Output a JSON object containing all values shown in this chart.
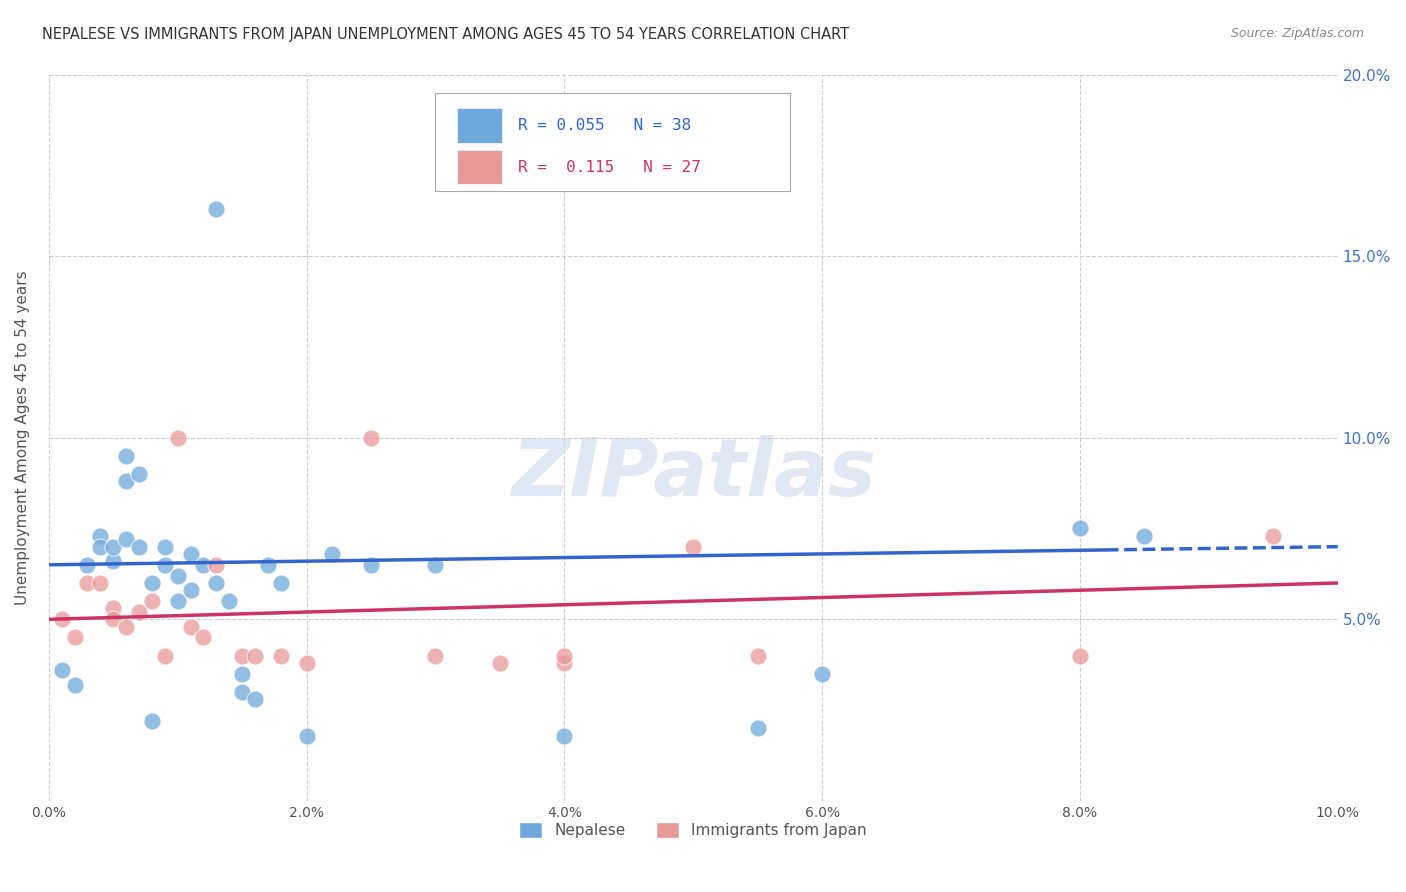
{
  "title": "NEPALESE VS IMMIGRANTS FROM JAPAN UNEMPLOYMENT AMONG AGES 45 TO 54 YEARS CORRELATION CHART",
  "source": "Source: ZipAtlas.com",
  "ylabel": "Unemployment Among Ages 45 to 54 years",
  "legend_label1": "Nepalese",
  "legend_label2": "Immigrants from Japan",
  "R1": 0.055,
  "N1": 38,
  "R2": 0.115,
  "N2": 27,
  "color1": "#6fa8dc",
  "color2": "#ea9999",
  "line_color1": "#3366cc",
  "line_color2": "#cc3366",
  "xlim": [
    0,
    0.1
  ],
  "ylim": [
    0,
    0.2
  ],
  "xticks": [
    0.0,
    0.02,
    0.04,
    0.06,
    0.08,
    0.1
  ],
  "yticks": [
    0.0,
    0.05,
    0.1,
    0.15,
    0.2
  ],
  "xtick_labels": [
    "0.0%",
    "2.0%",
    "4.0%",
    "6.0%",
    "8.0%",
    "10.0%"
  ],
  "right_ytick_labels": [
    "",
    "5.0%",
    "10.0%",
    "15.0%",
    "20.0%"
  ],
  "blue_x": [
    0.001,
    0.002,
    0.003,
    0.004,
    0.004,
    0.005,
    0.005,
    0.006,
    0.006,
    0.006,
    0.007,
    0.007,
    0.008,
    0.009,
    0.009,
    0.01,
    0.01,
    0.011,
    0.011,
    0.012,
    0.013,
    0.014,
    0.015,
    0.015,
    0.016,
    0.017,
    0.018,
    0.02,
    0.022,
    0.025,
    0.03,
    0.04,
    0.055,
    0.06,
    0.08,
    0.085,
    0.013,
    0.008
  ],
  "blue_y": [
    0.036,
    0.032,
    0.065,
    0.073,
    0.07,
    0.066,
    0.07,
    0.095,
    0.088,
    0.072,
    0.09,
    0.07,
    0.06,
    0.065,
    0.07,
    0.055,
    0.062,
    0.068,
    0.058,
    0.065,
    0.06,
    0.055,
    0.035,
    0.03,
    0.028,
    0.065,
    0.06,
    0.018,
    0.068,
    0.065,
    0.065,
    0.018,
    0.02,
    0.035,
    0.075,
    0.073,
    0.163,
    0.022
  ],
  "pink_x": [
    0.001,
    0.002,
    0.003,
    0.004,
    0.005,
    0.005,
    0.006,
    0.007,
    0.008,
    0.009,
    0.01,
    0.011,
    0.012,
    0.013,
    0.015,
    0.016,
    0.018,
    0.02,
    0.025,
    0.03,
    0.035,
    0.04,
    0.04,
    0.05,
    0.055,
    0.08,
    0.095
  ],
  "pink_y": [
    0.05,
    0.045,
    0.06,
    0.06,
    0.053,
    0.05,
    0.048,
    0.052,
    0.055,
    0.04,
    0.1,
    0.048,
    0.045,
    0.065,
    0.04,
    0.04,
    0.04,
    0.038,
    0.1,
    0.04,
    0.038,
    0.038,
    0.04,
    0.07,
    0.04,
    0.04,
    0.073
  ],
  "blue_line_start_x": 0.0,
  "blue_line_end_solid_x": 0.082,
  "blue_line_end_x": 0.1,
  "blue_line_start_y": 0.065,
  "blue_line_end_y": 0.07,
  "pink_line_start_y": 0.05,
  "pink_line_end_y": 0.06,
  "background_color": "#ffffff",
  "watermark": "ZIPatlas"
}
